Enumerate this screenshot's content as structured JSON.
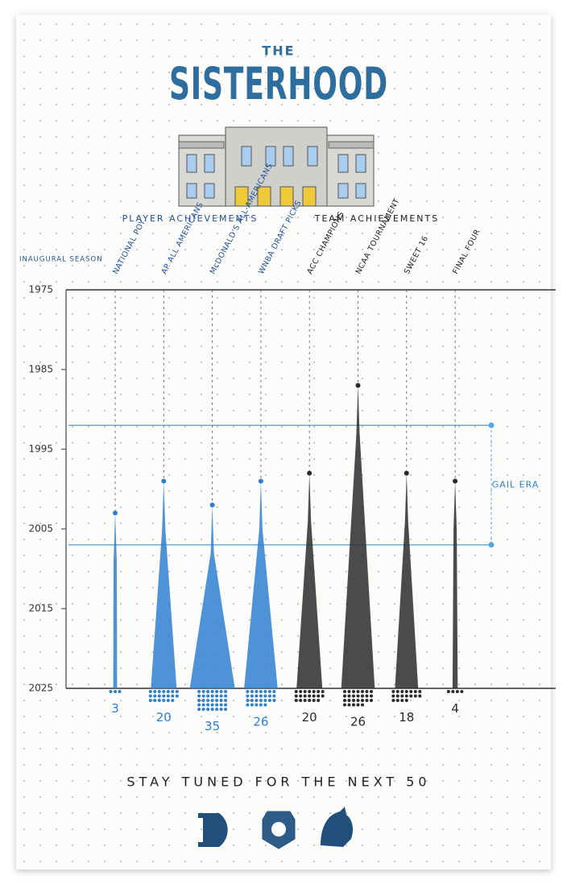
{
  "chart_data": {
    "type": "spike",
    "kicker": "THE",
    "title": "SISTERHOOD",
    "group_labels": [
      "PLAYER ACHIEVEMENTS",
      "TEAM ACHIEVEMENTS"
    ],
    "y_label": "INAUGURAL SEASON",
    "ylim": [
      1975,
      2025
    ],
    "yticks": [
      1975,
      1985,
      1995,
      2005,
      2015,
      2025
    ],
    "categories": [
      "NATIONAL POY",
      "AP ALL AMERICANS",
      "McDONALD'S ALL-AMERICANS",
      "WNBA DRAFT PICKS",
      "ACC CHAMPIONS",
      "NCAA TOURNAMENT",
      "SWEET 16",
      "FINAL FOUR"
    ],
    "colors": [
      "#2f7fd0",
      "#2f7fd0",
      "#2f7fd0",
      "#2f7fd0",
      "#2b2b2b",
      "#2b2b2b",
      "#2b2b2b",
      "#2b2b2b"
    ],
    "first_season": [
      2003,
      1999,
      2002,
      1999,
      1998,
      1987,
      1998,
      1999
    ],
    "values": [
      3,
      20,
      35,
      26,
      20,
      26,
      18,
      4
    ],
    "band": {
      "label": "GAIL ERA",
      "from": 1992,
      "to": 2007
    },
    "footer": "STAY TUNED FOR THE NEXT 50"
  }
}
